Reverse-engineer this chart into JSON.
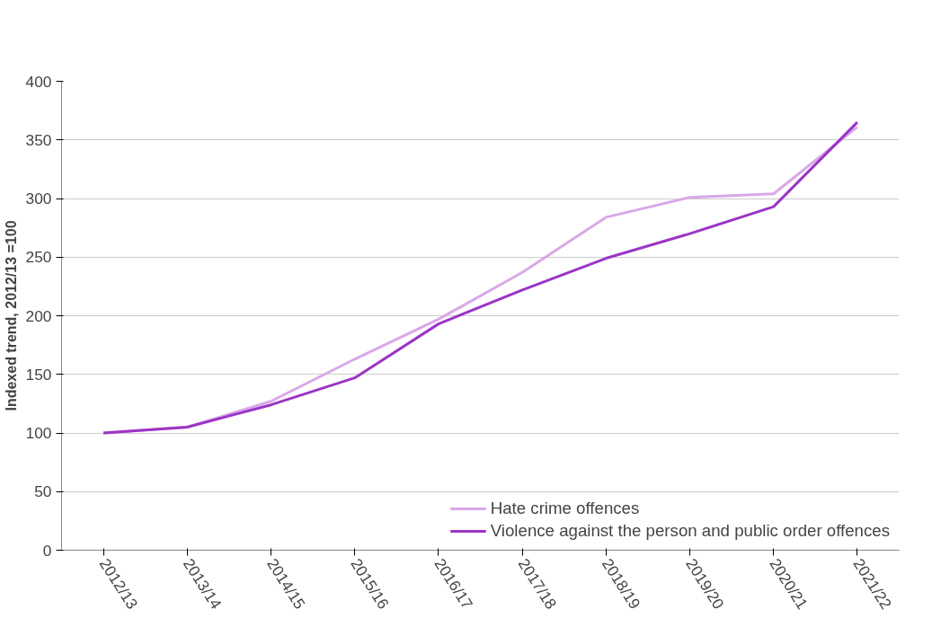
{
  "chart_data": {
    "type": "line",
    "ylabel": "Indexed trend, 2012/13 =100",
    "categories": [
      "2012/13",
      "2013/14",
      "2014/15",
      "2015/16",
      "2016/17",
      "2017/18",
      "2018/19",
      "2019/20",
      "2020/21",
      "2021/22"
    ],
    "series": [
      {
        "name": "Hate crime offences",
        "color": "#d9a8e8",
        "values": [
          100,
          105,
          127,
          163,
          197,
          237,
          284,
          301,
          304,
          361
        ]
      },
      {
        "name": "Violence against the person and public order offences",
        "color": "#9b35c6",
        "values": [
          100,
          105,
          124,
          147,
          193,
          222,
          249,
          270,
          293,
          365
        ]
      }
    ],
    "ylim": [
      0,
      400
    ],
    "yticks": [
      0,
      50,
      100,
      150,
      200,
      250,
      300,
      350,
      400
    ],
    "grid": "y",
    "legend": "bottom right",
    "marker": "none",
    "line_style": "solid"
  }
}
